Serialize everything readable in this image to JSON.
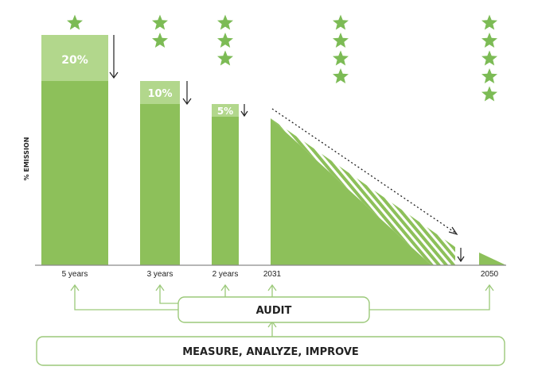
{
  "colors": {
    "bar": "#8dc05a",
    "bar_light": "#b2d78c",
    "star": "#7cbb55",
    "box_border": "#9cc97a",
    "line": "#777777",
    "text": "#222222"
  },
  "y_axis_label": "% EMISSION",
  "bars": [
    {
      "tick": "5 years",
      "reduction": "20%",
      "stars": 1
    },
    {
      "tick": "3 years",
      "reduction": "10%",
      "stars": 2
    },
    {
      "tick": "2 years",
      "reduction": "5%",
      "stars": 3
    }
  ],
  "ramp": {
    "start_tick": "2031",
    "stars": 4
  },
  "end": {
    "tick": "2050",
    "stars": 5
  },
  "audit_label": "AUDIT",
  "measure_label": "MEASURE, ANALYZE, IMPROVE"
}
